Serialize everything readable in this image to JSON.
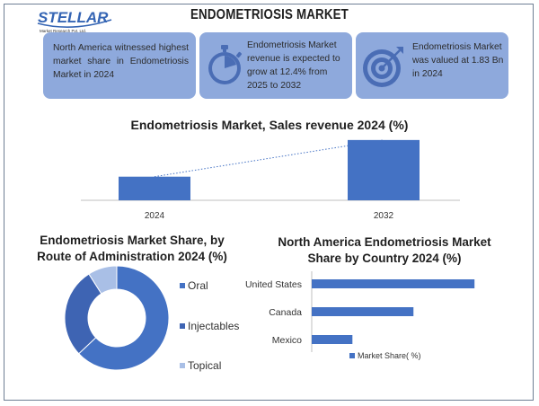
{
  "header": {
    "logo_text": "STELLAR",
    "logo_subtext": "Market Research Pvt. Ltd.",
    "title": "ENDOMETRIOSIS MARKET"
  },
  "cards": [
    {
      "text": "North America witnessed highest market share in Endometriosis Market in 2024",
      "icon": "map-icon"
    },
    {
      "text": "Endometriosis Market revenue is expected to grow at 12.4% from 2025 to 2032",
      "icon": "stopwatch-icon"
    },
    {
      "text": "Endometriosis Market was valued at 1.83 Bn in 2024",
      "icon": "target-icon"
    }
  ],
  "colors": {
    "accent": "#4472c4",
    "card_bg": "#8ea9dc",
    "donut_injectables": "#3e64b3",
    "donut_topical": "#a9bfe6"
  },
  "chart_data": [
    {
      "type": "bar",
      "title": "Endometriosis Market, Sales revenue 2024 (%)",
      "categories": [
        "2024",
        "2032"
      ],
      "values": [
        1.83,
        4.67
      ],
      "ylim": [
        0,
        4.8
      ],
      "trend_line": true,
      "grid": false
    },
    {
      "type": "pie",
      "title": "Endometriosis Market Share, by Route of Administration 2024 (%)",
      "title_lines": [
        "Endometriosis Market Share, by",
        "Route of Administration 2024 (%)"
      ],
      "donut": true,
      "categories": [
        "Oral",
        "Injectables",
        "Topical"
      ],
      "values": [
        63,
        28,
        9
      ],
      "colors": [
        "#4472c4",
        "#3e64b3",
        "#a9bfe6"
      ],
      "legend": "right"
    },
    {
      "type": "bar",
      "orientation": "horizontal",
      "title": "North America Endometriosis Market Share by Country 2024 (%)",
      "title_lines": [
        "North America Endometriosis Market",
        "Share by Country 2024 (%)"
      ],
      "categories": [
        "United States",
        "Canada",
        "Mexico"
      ],
      "series": [
        {
          "name": "Market Share( %)",
          "values": [
            80,
            50,
            20
          ]
        }
      ],
      "xlim": [
        0,
        83
      ],
      "legend": "bottom"
    }
  ]
}
